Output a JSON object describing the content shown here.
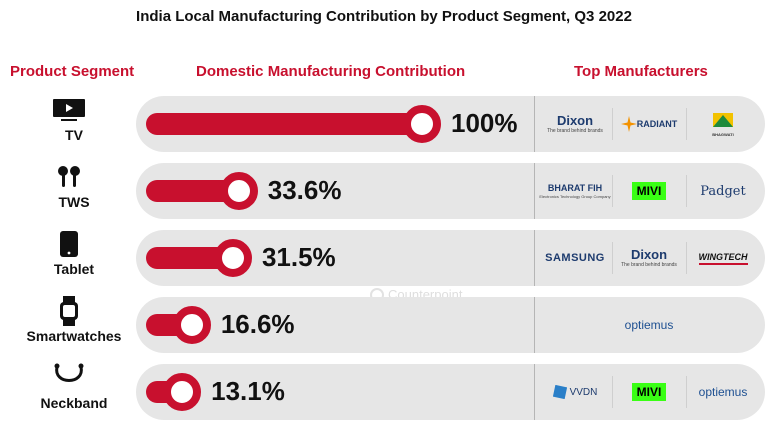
{
  "title": "India Local Manufacturing Contribution by Product Segment, Q3 2022",
  "headers": {
    "segment": "Product Segment",
    "contribution": "Domestic Manufacturing Contribution",
    "manufacturers": "Top Manufacturers"
  },
  "watermark": "Counterpoint",
  "colors": {
    "accent": "#c8102e",
    "row_background": "#e6e6e6",
    "text": "#111111",
    "mivi_green": "#39ff14"
  },
  "chart_data": {
    "type": "bar",
    "orientation": "horizontal",
    "title": "India Local Manufacturing Contribution by Product Segment, Q3 2022",
    "categories": [
      "TV",
      "TWS",
      "Tablet",
      "Smartwatches",
      "Neckband"
    ],
    "values": [
      100,
      33.6,
      31.5,
      16.6,
      13.1
    ],
    "value_labels": [
      "100%",
      "33.6%",
      "31.5%",
      "16.6%",
      "13.1%"
    ],
    "xlim": [
      0,
      100
    ],
    "unit": "%",
    "grid": false
  },
  "segments": [
    {
      "label": "TV",
      "icon": "tv-icon",
      "value_label": "100%",
      "manufacturers": [
        {
          "name": "Dixon",
          "tagline": "The brand behind brands",
          "icon": "dixon-logo"
        },
        {
          "name": "RADIANT",
          "icon": "radiant-logo"
        },
        {
          "name": "BHAGWATI",
          "icon": "bhagwati-logo"
        }
      ]
    },
    {
      "label": "TWS",
      "icon": "earbuds-icon",
      "value_label": "33.6%",
      "manufacturers": [
        {
          "name": "BHARAT FIH",
          "tagline": "Electronics Technology Group Company",
          "icon": "bharat-fih-logo"
        },
        {
          "name": "MIVI",
          "icon": "mivi-logo"
        },
        {
          "name": "Padget",
          "icon": "padget-logo"
        }
      ]
    },
    {
      "label": "Tablet",
      "icon": "tablet-icon",
      "value_label": "31.5%",
      "manufacturers": [
        {
          "name": "SAMSUNG",
          "icon": "samsung-logo"
        },
        {
          "name": "Dixon",
          "tagline": "The brand behind brands",
          "icon": "dixon-logo"
        },
        {
          "name": "WINGTECH",
          "icon": "wingtech-logo"
        }
      ]
    },
    {
      "label": "Smartwatches",
      "icon": "smartwatch-icon",
      "value_label": "16.6%",
      "manufacturers": [
        {
          "name": "optiemus",
          "icon": "optiemus-logo"
        }
      ]
    },
    {
      "label": "Neckband",
      "icon": "neckband-icon",
      "value_label": "13.1%",
      "manufacturers": [
        {
          "name": "VVDN",
          "icon": "vvdn-logo"
        },
        {
          "name": "MIVI",
          "icon": "mivi-logo"
        },
        {
          "name": "optiemus",
          "icon": "optiemus-logo"
        }
      ]
    }
  ]
}
